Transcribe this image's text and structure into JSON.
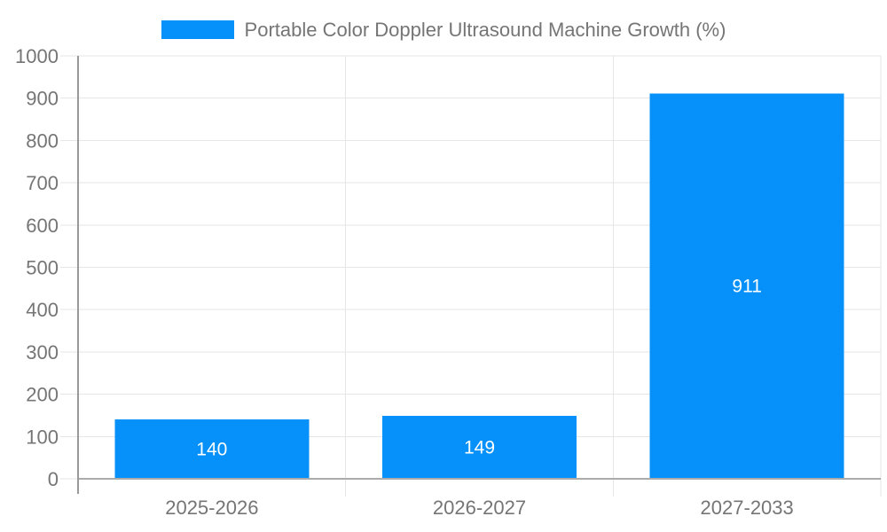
{
  "legend": {
    "label": "Portable Color Doppler Ultrasound Machine Growth (%)"
  },
  "chart_data": {
    "type": "bar",
    "title": "Portable Color Doppler Ultrasound Machine Growth (%)",
    "series_name": "Portable Color Doppler Ultrasound Machine Growth (%)",
    "categories": [
      "2025-2026",
      "2026-2027",
      "2027-2033"
    ],
    "values": [
      140,
      149,
      911
    ],
    "value_labels": [
      "140",
      "149",
      "911"
    ],
    "value_labels_position": "inside",
    "xlabel": "",
    "ylabel": "",
    "ylim": [
      0,
      1000
    ],
    "yticks": [
      0,
      100,
      200,
      300,
      400,
      500,
      600,
      700,
      800,
      900,
      1000
    ],
    "grid": true,
    "legend_position": "top",
    "colors": {
      "bar": "#0590fa",
      "bar_label_text": "#ffffff",
      "axis_text": "#757575",
      "gridline": "#e6e6e6",
      "y_axis_line": "#999999",
      "baseline": "#ababab",
      "background": "#ffffff"
    }
  }
}
